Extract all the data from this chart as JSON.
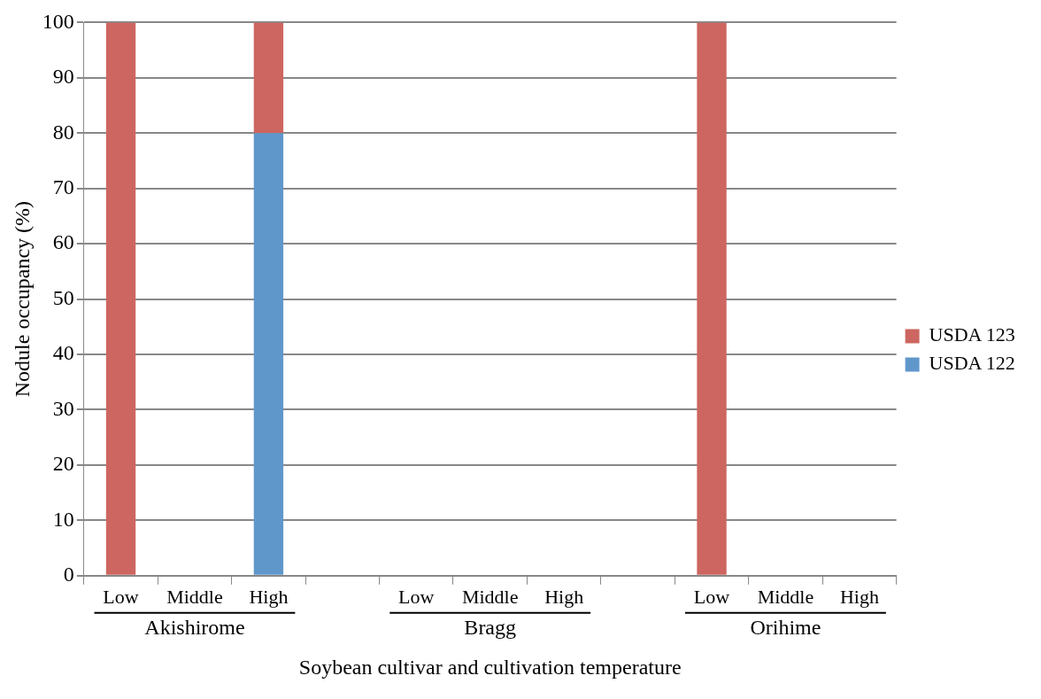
{
  "chart_data": {
    "type": "bar",
    "stacked": true,
    "xlabel": "Soybean cultivar and cultivation temperature",
    "ylabel": "Nodule occupancy (%)",
    "categories": [
      "Low",
      "Middle",
      "High",
      null,
      "Low",
      "Middle",
      "High",
      null,
      "Low",
      "Middle",
      "High"
    ],
    "series": [
      {
        "name": "USDA 122",
        "color": "#6097cb",
        "values": [
          0,
          0,
          80,
          null,
          0,
          0,
          0,
          null,
          0,
          0,
          0
        ]
      },
      {
        "name": "USDA 123",
        "color": "#cd6660",
        "values": [
          100,
          0,
          20,
          null,
          0,
          0,
          0,
          null,
          100,
          0,
          0
        ]
      }
    ],
    "annotations": [
      "Akishirome",
      "Bragg",
      "Orihime"
    ],
    "ylim": [
      0,
      100
    ],
    "yticks": [
      0,
      10,
      20,
      30,
      40,
      50,
      60,
      70,
      80,
      90,
      100
    ],
    "grid": "y",
    "legend": "right"
  }
}
